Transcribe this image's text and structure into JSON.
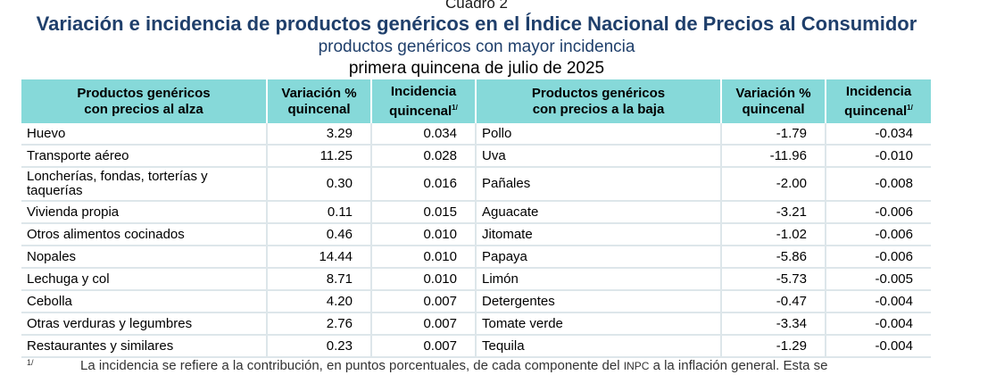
{
  "header": {
    "cuadro": "Cuadro 2",
    "title": "Variación e incidencia de productos genéricos en el Índice Nacional de Precios al Consumidor",
    "subtitle": "productos genéricos con mayor incidencia",
    "period": "primera quincena de julio de 2025"
  },
  "table": {
    "headers": {
      "up_product_l1": "Productos genéricos",
      "up_product_l2": "con precios al alza",
      "up_var_l1": "Variación %",
      "up_var_l2": "quincenal",
      "up_inc_l1": "Incidencia",
      "up_inc_l2": "quincenal",
      "down_product_l1": "Productos genéricos",
      "down_product_l2": "con precios a la baja",
      "down_var_l1": "Variación %",
      "down_var_l2": "quincenal",
      "down_inc_l1": "Incidencia",
      "down_inc_l2": "quincenal",
      "footnote_mark": "1/"
    },
    "rows": [
      {
        "up": "Huevo",
        "up_var": "3.29",
        "up_inc": "0.034",
        "down": "Pollo",
        "down_var": "-1.79",
        "down_inc": "-0.034"
      },
      {
        "up": "Transporte aéreo",
        "up_var": "11.25",
        "up_inc": "0.028",
        "down": "Uva",
        "down_var": "-11.96",
        "down_inc": "-0.010"
      },
      {
        "up": "Loncherías, fondas, torterías y taquerías",
        "up_var": "0.30",
        "up_inc": "0.016",
        "down": "Pañales",
        "down_var": "-2.00",
        "down_inc": "-0.008"
      },
      {
        "up": "Vivienda propia",
        "up_var": "0.11",
        "up_inc": "0.015",
        "down": "Aguacate",
        "down_var": "-3.21",
        "down_inc": "-0.006"
      },
      {
        "up": "Otros alimentos cocinados",
        "up_var": "0.46",
        "up_inc": "0.010",
        "down": "Jitomate",
        "down_var": "-1.02",
        "down_inc": "-0.006"
      },
      {
        "up": "Nopales",
        "up_var": "14.44",
        "up_inc": "0.010",
        "down": "Papaya",
        "down_var": "-5.86",
        "down_inc": "-0.006"
      },
      {
        "up": "Lechuga y col",
        "up_var": "8.71",
        "up_inc": "0.010",
        "down": "Limón",
        "down_var": "-5.73",
        "down_inc": "-0.005"
      },
      {
        "up": "Cebolla",
        "up_var": "4.20",
        "up_inc": "0.007",
        "down": "Detergentes",
        "down_var": "-0.47",
        "down_inc": "-0.004"
      },
      {
        "up": "Otras verduras y legumbres",
        "up_var": "2.76",
        "up_inc": "0.007",
        "down": "Tomate verde",
        "down_var": "-3.34",
        "down_inc": "-0.004"
      },
      {
        "up": "Restaurantes y similares",
        "up_var": "0.23",
        "up_inc": "0.007",
        "down": "Tequila",
        "down_var": "-1.29",
        "down_inc": "-0.004"
      }
    ]
  },
  "footnote": {
    "mark": "1/",
    "text_before": "La incidencia se refiere a la contribución, en puntos porcentuales, de cada componente del ",
    "inpc": "INPC",
    "text_after": " a la inflación general. Esta se"
  },
  "colors": {
    "header_bg": "#86d9d9",
    "title": "#1f3f6b"
  }
}
